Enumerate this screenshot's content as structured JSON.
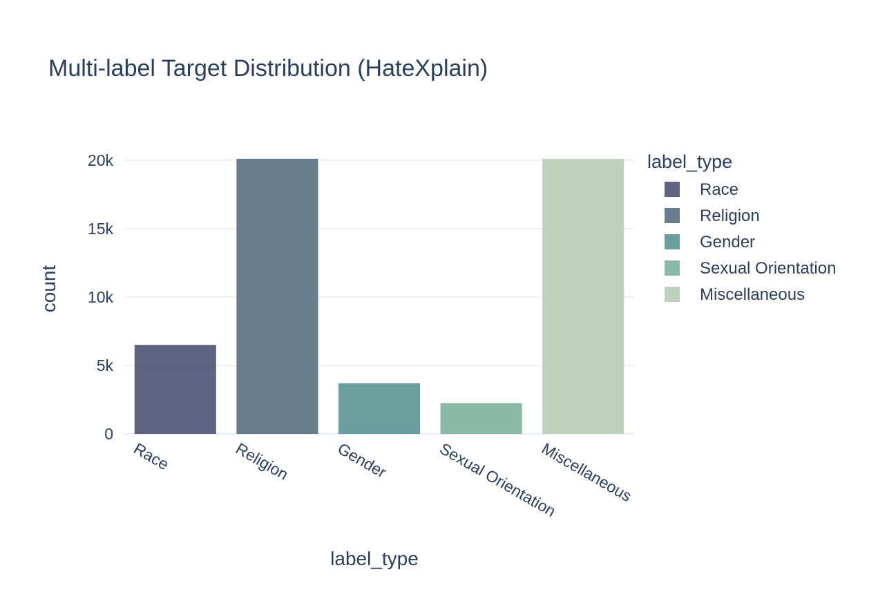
{
  "chart_data": {
    "type": "bar",
    "title": "Multi-label Target Distribution (HateXplain)",
    "xlabel": "label_type",
    "ylabel": "count",
    "categories": [
      "Race",
      "Religion",
      "Gender",
      "Sexual Orientation",
      "Miscellaneous"
    ],
    "values": [
      6500,
      20100,
      3700,
      2250,
      20100
    ],
    "colors": [
      "#4b5272",
      "#586f7f",
      "#5b9594",
      "#7fb29e",
      "#b8cdb6"
    ],
    "ylim": [
      0,
      21000
    ],
    "yticks": [
      0,
      5000,
      10000,
      15000,
      20000
    ],
    "ytick_labels": [
      "0",
      "5k",
      "10k",
      "15k",
      "20k"
    ],
    "grid": true,
    "legend": {
      "title": "label_type",
      "placement": "right",
      "entries": [
        "Race",
        "Religion",
        "Gender",
        "Sexual Orientation",
        "Miscellaneous"
      ]
    }
  }
}
